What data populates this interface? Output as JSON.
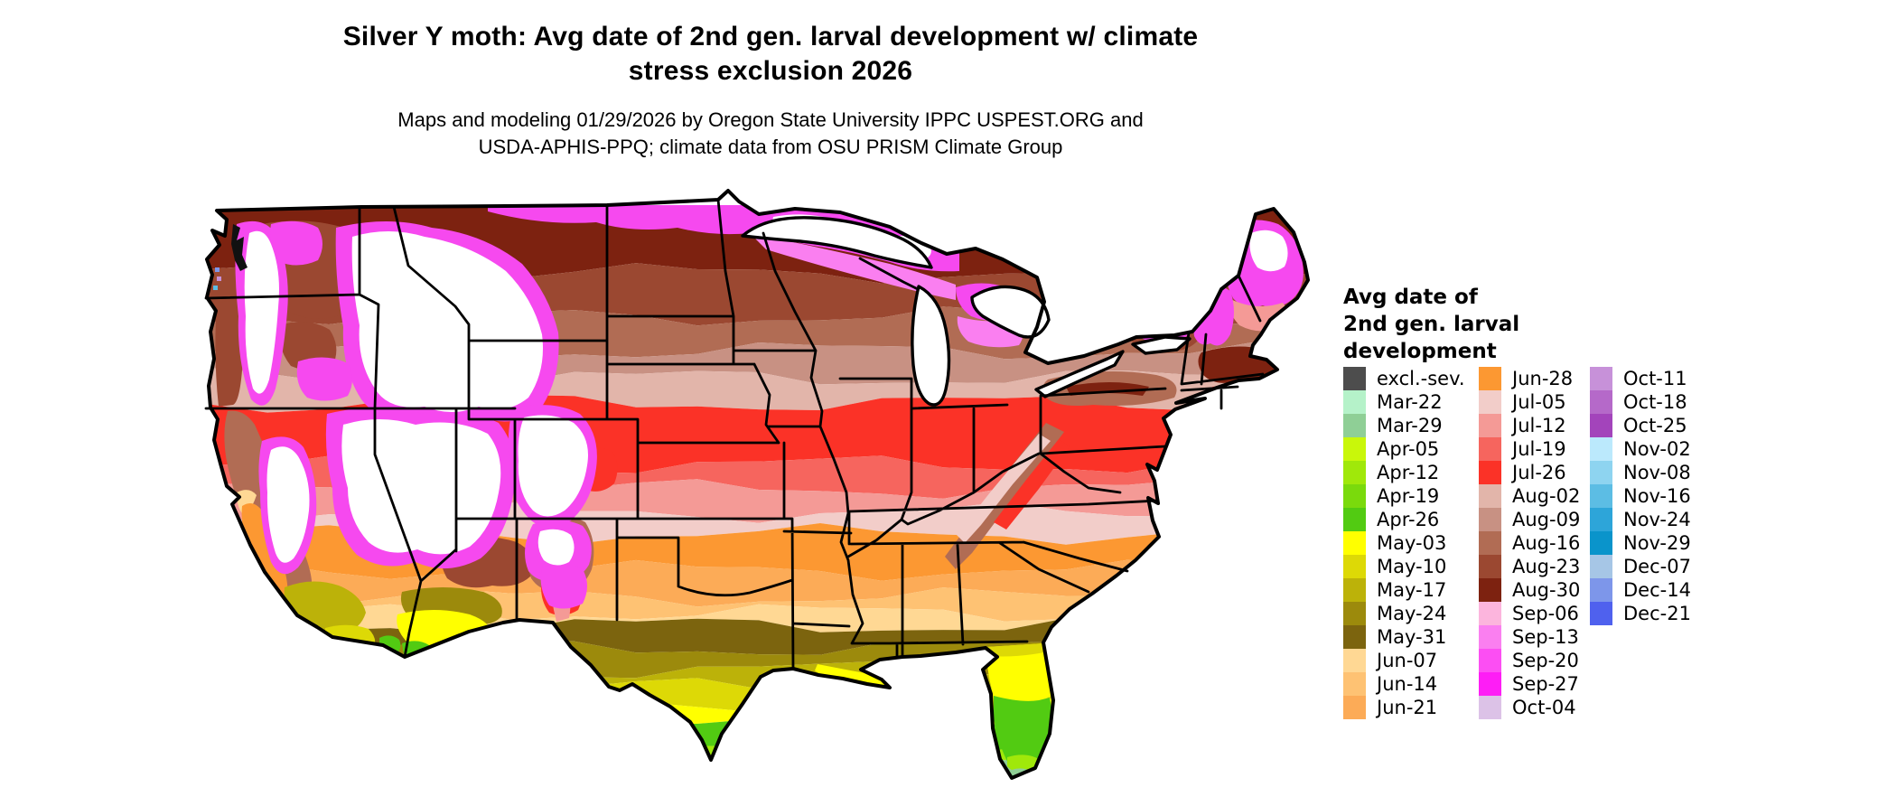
{
  "header": {
    "title_line1": "Silver Y moth: Avg date of 2nd gen. larval development w/ climate",
    "title_line2": "stress exclusion 2026",
    "subtitle_line1": "Maps and modeling 01/29/2026 by Oregon State University IPPC USPEST.ORG and",
    "subtitle_line2": "USDA-APHIS-PPQ; climate data from OSU PRISM Climate Group"
  },
  "map": {
    "kind": "us-choropleth-raster-map",
    "background_color": "#ffffff",
    "border_color": "#000000"
  },
  "legend": {
    "title_line1": "Avg date of",
    "title_line2": "2nd gen. larval",
    "title_line3": "development",
    "columns": [
      [
        {
          "label": "excl.-sev.",
          "color": "#4d4d4d"
        },
        {
          "label": "Mar-22",
          "color": "#b5f2c9"
        },
        {
          "label": "Mar-29",
          "color": "#8fcf96"
        },
        {
          "label": "Apr-05",
          "color": "#c9f70a"
        },
        {
          "label": "Apr-12",
          "color": "#a0e80a"
        },
        {
          "label": "Apr-19",
          "color": "#7ada0c"
        },
        {
          "label": "Apr-26",
          "color": "#52cb12"
        },
        {
          "label": "May-03",
          "color": "#ffff00"
        },
        {
          "label": "May-10",
          "color": "#ddd906"
        },
        {
          "label": "May-17",
          "color": "#bcb209"
        },
        {
          "label": "May-24",
          "color": "#9c8a0c"
        },
        {
          "label": "May-31",
          "color": "#7c640e"
        },
        {
          "label": "Jun-07",
          "color": "#ffd894"
        },
        {
          "label": "Jun-14",
          "color": "#fec273"
        },
        {
          "label": "Jun-21",
          "color": "#fcab57"
        }
      ],
      [
        {
          "label": "Jun-28",
          "color": "#fc9832"
        },
        {
          "label": "Jul-05",
          "color": "#f2cdc9"
        },
        {
          "label": "Jul-12",
          "color": "#f49a96"
        },
        {
          "label": "Jul-19",
          "color": "#f6655e"
        },
        {
          "label": "Jul-26",
          "color": "#fb3227"
        },
        {
          "label": "Aug-02",
          "color": "#e2b5aa"
        },
        {
          "label": "Aug-09",
          "color": "#c89183"
        },
        {
          "label": "Aug-16",
          "color": "#b16c54"
        },
        {
          "label": "Aug-23",
          "color": "#9b4831"
        },
        {
          "label": "Aug-30",
          "color": "#7d2210"
        },
        {
          "label": "Sep-06",
          "color": "#fcb5dd"
        },
        {
          "label": "Sep-13",
          "color": "#fa7ff0"
        },
        {
          "label": "Sep-20",
          "color": "#fc4ef3"
        },
        {
          "label": "Sep-27",
          "color": "#fe1df6"
        },
        {
          "label": "Oct-04",
          "color": "#dcc2e7"
        }
      ],
      [
        {
          "label": "Oct-11",
          "color": "#c791d9"
        },
        {
          "label": "Oct-18",
          "color": "#b569c9"
        },
        {
          "label": "Oct-25",
          "color": "#a344bb"
        },
        {
          "label": "Nov-02",
          "color": "#bbe9fc"
        },
        {
          "label": "Nov-08",
          "color": "#8ed4f0"
        },
        {
          "label": "Nov-16",
          "color": "#5cbde4"
        },
        {
          "label": "Nov-24",
          "color": "#2da5d9"
        },
        {
          "label": "Nov-29",
          "color": "#0a94cb"
        },
        {
          "label": "Dec-07",
          "color": "#a6c6e6"
        },
        {
          "label": "Dec-14",
          "color": "#7d96ea"
        },
        {
          "label": "Dec-21",
          "color": "#4f61ee"
        }
      ]
    ]
  }
}
